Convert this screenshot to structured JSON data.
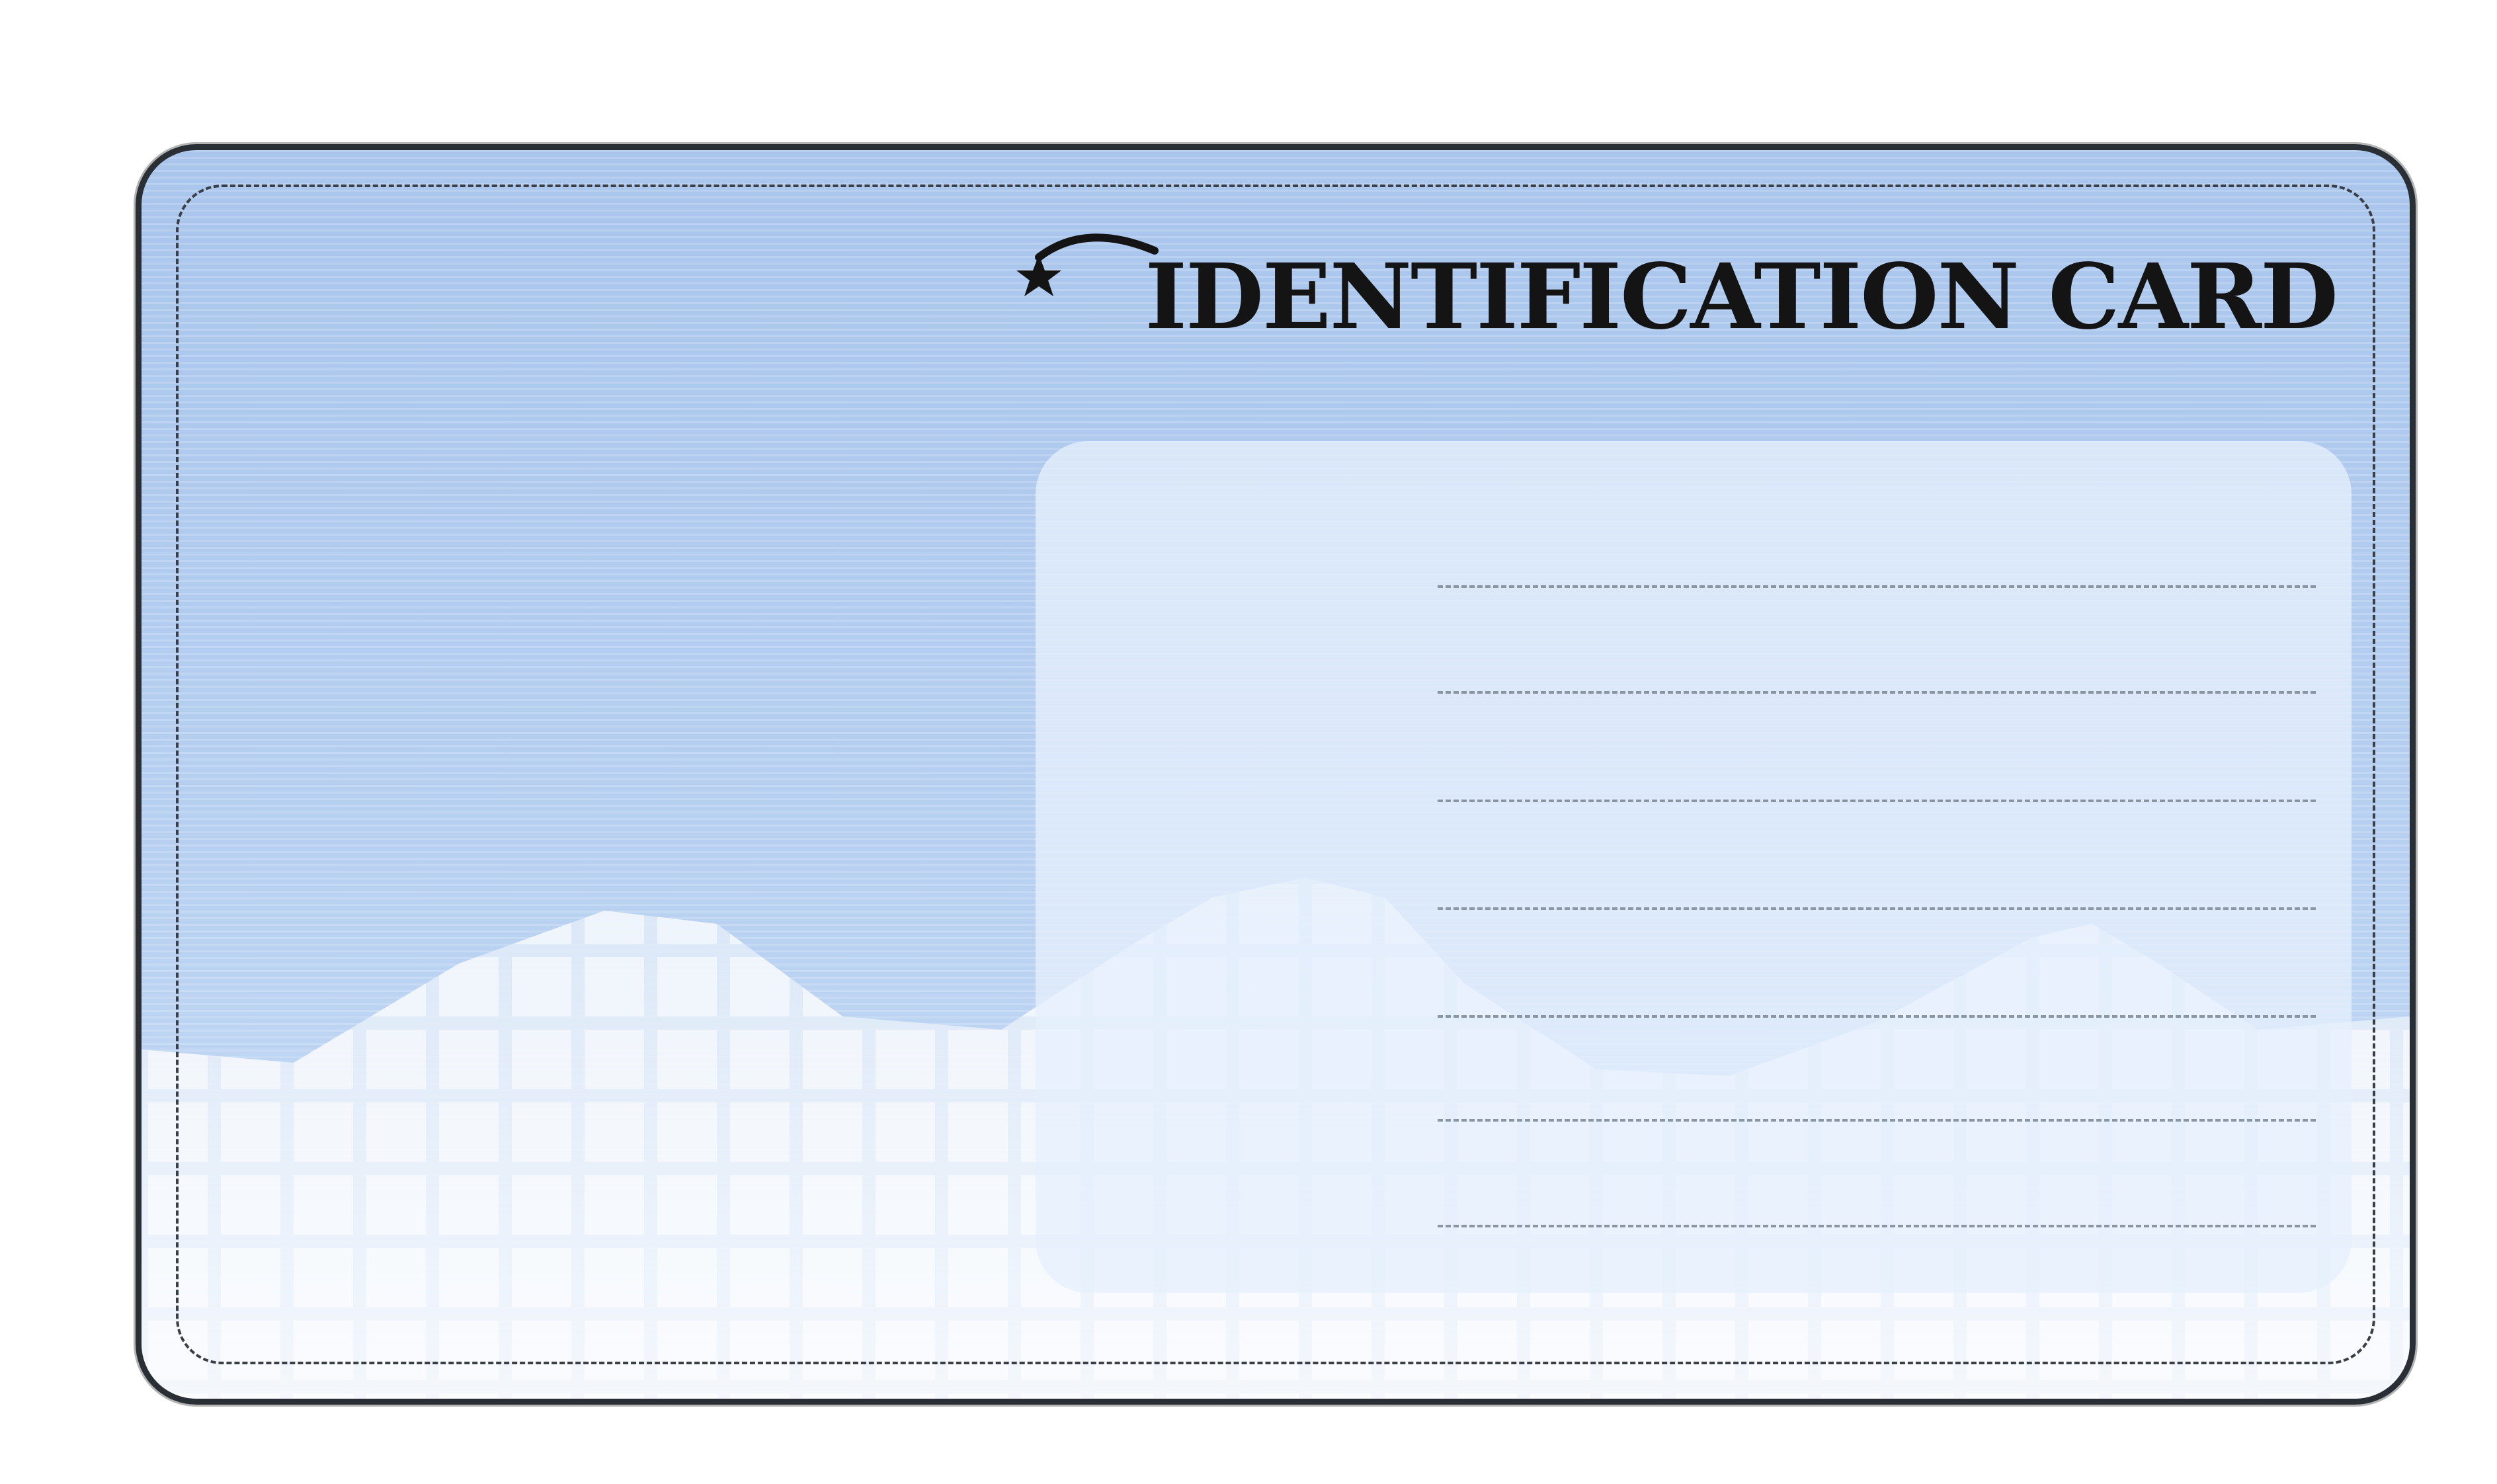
{
  "card": {
    "title": "IDENTIFICATION CARD",
    "title_icon": "shooting-star-icon",
    "field_lines": [
      "",
      "",
      "",
      "",
      "",
      "",
      ""
    ]
  },
  "colors": {
    "card_blue": "#a9c5ec",
    "panel": "#e6f0fc",
    "skyline_light": "#eef4fb",
    "title_text": "#141414",
    "border": "#2a2f36",
    "field_line": "#8b96a3"
  }
}
